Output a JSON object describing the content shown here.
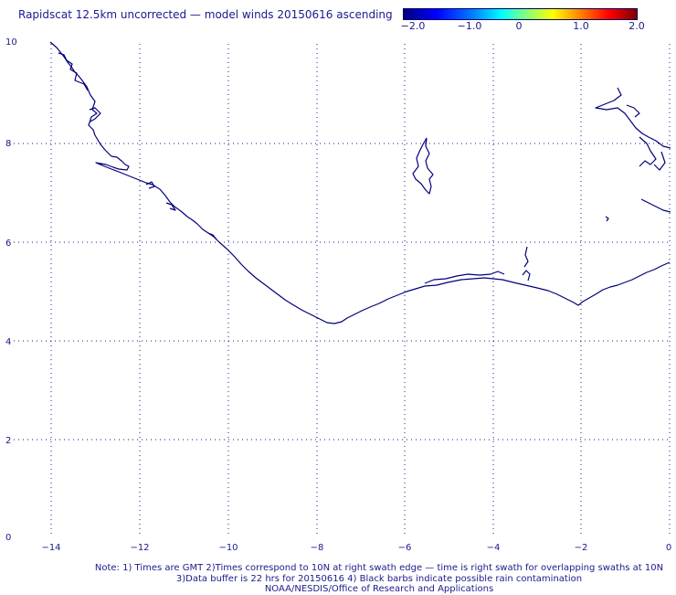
{
  "title": "Rapidscat 12.5km uncorrected — model winds 20150616 ascending",
  "colorbar": {
    "colors": [
      "#00007f",
      "#0000ff",
      "#00ffff",
      "#ffff00",
      "#ff0000",
      "#7f0000"
    ],
    "labels": [
      "−2.0",
      "−1.0",
      "0",
      "1.0",
      "2.0"
    ]
  },
  "map": {
    "lon_range": [
      -14.5,
      0
    ],
    "lat_range": [
      0,
      10
    ],
    "x_ticks": [
      "−14",
      "−12",
      "−10",
      "−8",
      "−6",
      "−4",
      "−2",
      "0"
    ],
    "y_ticks": [
      "0",
      "2",
      "4",
      "6",
      "8",
      "10"
    ],
    "grid_style": "dotted"
  },
  "notes": {
    "line1": "Note: 1) Times are GMT 2)Times correspond to 10N at right swath edge — time is right swath for overlapping swaths at 10N",
    "line2": "3)Data buffer is 22 hrs for 20150616 4) Black barbs indicate possible rain contamination",
    "line3": "NOAA/NESDIS/Office of Research and Applications"
  }
}
